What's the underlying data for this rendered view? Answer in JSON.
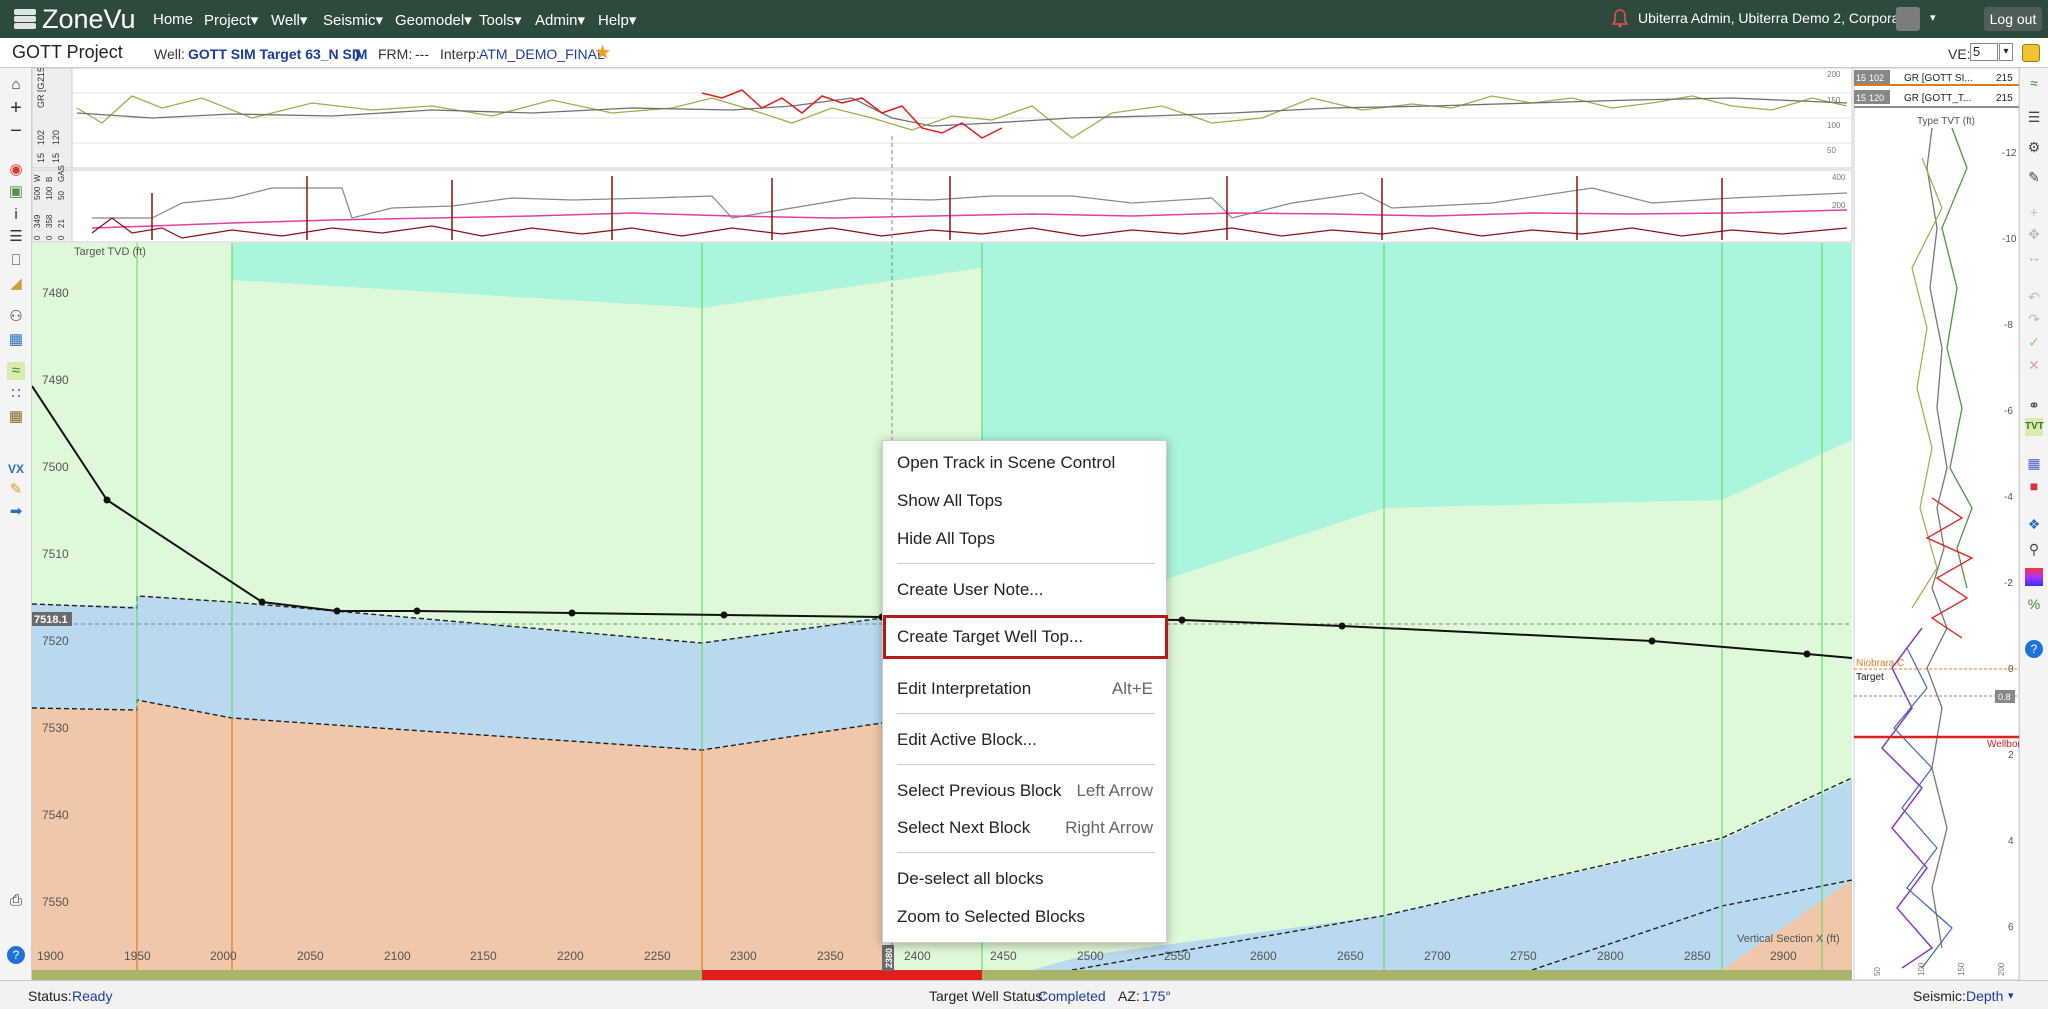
{
  "app": {
    "logo": "ZoneVu",
    "nav": [
      "Home",
      "Project",
      "Well",
      "Seismic",
      "Geomodel",
      "Tools",
      "Admin",
      "Help"
    ],
    "user": "Ubiterra Admin, Ubiterra Demo 2, Corporate",
    "logout": "Log out"
  },
  "header": {
    "project": "GOTT Project",
    "well_label": "Well:",
    "well_value": "GOTT SIM Target 63_N SIM",
    "frm_label": "FRM:",
    "frm_value": "---",
    "interp_label": "Interp:",
    "interp_value": "ATM_DEMO_FINAL",
    "ve_label": "VE:",
    "ve_value": "5"
  },
  "tracks": {
    "gr_label": "GR [G...",
    "gr_min": "15",
    "gr_mid": "102",
    "gr_max": "215",
    "gr2_min": "15",
    "gr2_mid": "120",
    "gas_labels": [
      "0",
      "349",
      "500",
      "W",
      "0",
      "358",
      "100",
      "B",
      "0",
      "21",
      "50",
      "GAS"
    ],
    "right_gr1": "GR [GOTT SI...",
    "right_gr2": "GR [GOTT_T...",
    "right_gr1_min": "15",
    "right_gr1_mid": "102",
    "right_gr1_max": "215",
    "right_gr2_min": "15",
    "right_gr2_mid": "120",
    "right_gr2_max": "215"
  },
  "section": {
    "tvd_label": "Target TVD (ft)",
    "tvd_ticks": [
      "7480",
      "7490",
      "7500",
      "7510",
      "7520",
      "7530",
      "7540",
      "7550"
    ],
    "marker": "7518.1",
    "x_ticks": [
      "1900",
      "1950",
      "2000",
      "2050",
      "2100",
      "2150",
      "2200",
      "2250",
      "2300",
      "2350",
      "2400",
      "2450",
      "2500",
      "2550",
      "2600",
      "2650",
      "2700",
      "2750",
      "2800",
      "2850",
      "2900"
    ],
    "x_label": "Vertical Section X (ft)",
    "x_marker": "2380"
  },
  "type_panel": {
    "title": "Type TVT (ft)",
    "ticks": [
      "-12",
      "-10",
      "-8",
      "-6",
      "-4",
      "-2",
      "0",
      "2",
      "4",
      "6"
    ],
    "niobrara": "Niobrara C",
    "target": "Target",
    "wellbore": "Wellbore",
    "offset": "0.8",
    "bottom_ticks": [
      "50",
      "100",
      "150",
      "200"
    ]
  },
  "top_track_ticks": [
    "200",
    "150",
    "100",
    "50"
  ],
  "gas_track_ticks": [
    "400",
    "200"
  ],
  "context_menu": {
    "items": [
      {
        "label": "Open Track in Scene Control",
        "shortcut": ""
      },
      {
        "label": "Show All Tops",
        "shortcut": ""
      },
      {
        "label": "Hide All Tops",
        "shortcut": ""
      },
      {
        "label": "Create User Note...",
        "shortcut": ""
      },
      {
        "label": "Create Target Well Top...",
        "shortcut": ""
      },
      {
        "label": "Edit Interpretation",
        "shortcut": "Alt+E"
      },
      {
        "label": "Edit Active Block...",
        "shortcut": ""
      },
      {
        "label": "Select Previous Block",
        "shortcut": "Left Arrow"
      },
      {
        "label": "Select Next Block",
        "shortcut": "Right Arrow"
      },
      {
        "label": "De-select all blocks",
        "shortcut": ""
      },
      {
        "label": "Zoom to Selected Blocks",
        "shortcut": ""
      }
    ]
  },
  "status": {
    "label": "Status:",
    "value": "Ready",
    "tws_label": "Target Well Status:",
    "tws_value": "Completed",
    "az_label": "AZ:",
    "az_value": "175°",
    "seismic_label": "Seismic:",
    "seismic_value": "Depth"
  },
  "colors": {
    "nav_bg": "#2e4a3c",
    "highlight": "#b31b1b",
    "blue_block": "#b9d9ee",
    "orange_block": "#f0c7a8",
    "light_green": "#dff8d9",
    "teal": "#a9f5dd"
  },
  "icons": [
    "home-icon",
    "zoom-in-icon",
    "zoom-out-icon",
    "print-icon",
    "help-icon",
    "lock-icon",
    "settings-icon",
    "search-icon",
    "pencil-icon"
  ]
}
